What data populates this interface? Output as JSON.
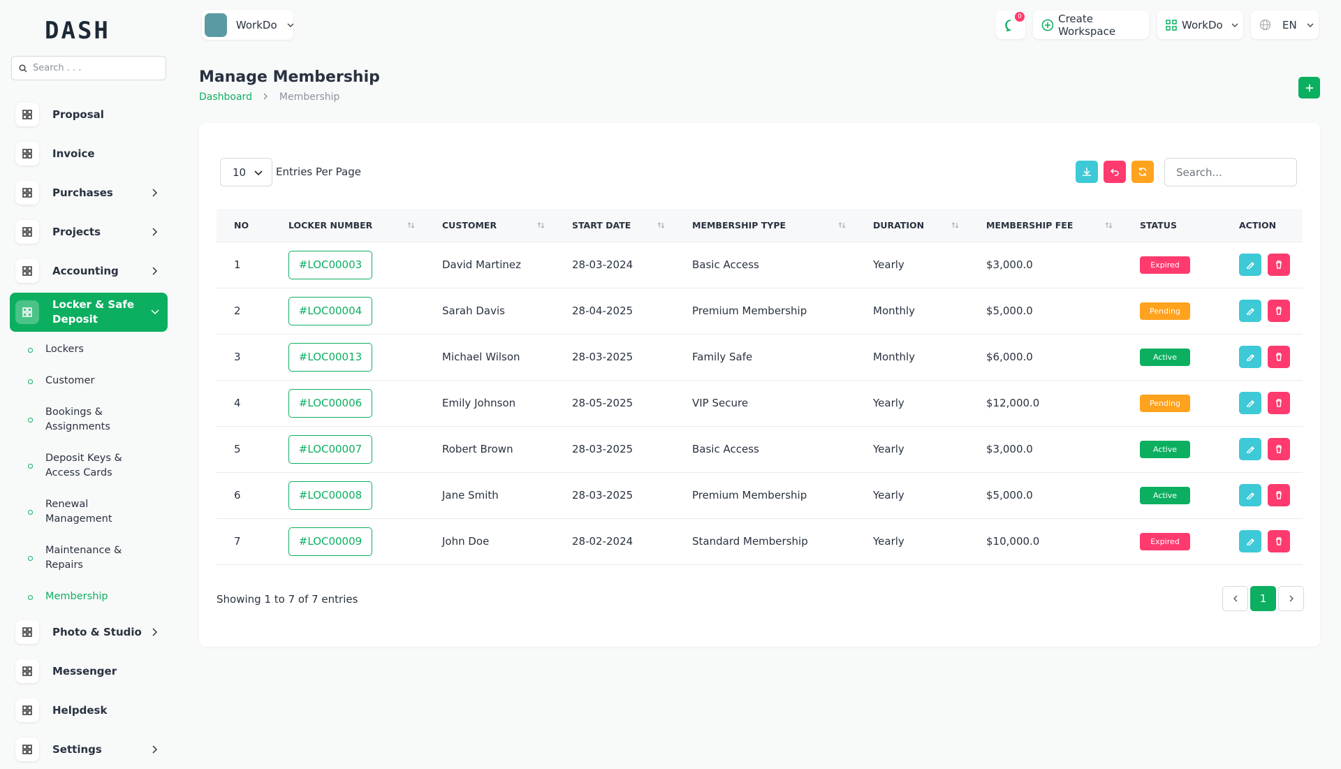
{
  "sidebar": {
    "logo": "DASH",
    "search_placeholder": "Search . . .",
    "menu": [
      {
        "label": "Proposal"
      },
      {
        "label": "Invoice"
      },
      {
        "label": "Purchases",
        "expandable": true
      },
      {
        "label": "Projects",
        "expandable": true
      },
      {
        "label": "Accounting",
        "expandable": true
      },
      {
        "label": "Locker & Safe Deposit",
        "expandable": true,
        "active": true,
        "children": [
          {
            "label": "Lockers"
          },
          {
            "label": "Customer"
          },
          {
            "label": "Bookings & Assignments"
          },
          {
            "label": "Deposit Keys & Access Cards"
          },
          {
            "label": "Renewal Management"
          },
          {
            "label": "Maintenance & Repairs"
          },
          {
            "label": "Membership",
            "active": true
          }
        ]
      },
      {
        "label": "Photo & Studio",
        "expandable": true
      },
      {
        "label": "Messenger"
      },
      {
        "label": "Helpdesk"
      },
      {
        "label": "Settings",
        "expandable": true
      }
    ]
  },
  "header": {
    "workspace": "WorkDo",
    "notification_count": 0,
    "create_workspace": "Create Workspace",
    "user": "WorkDo",
    "language": "EN"
  },
  "page": {
    "title": "Manage Membership",
    "breadcrumb": [
      "Dashboard",
      "Membership"
    ]
  },
  "table": {
    "entries_value": 10,
    "entries_label": "Entries Per Page",
    "search_placeholder": "Search...",
    "columns": [
      "NO",
      "LOCKER NUMBER",
      "CUSTOMER",
      "START DATE",
      "MEMBERSHIP TYPE",
      "DURATION",
      "MEMBERSHIP FEE",
      "STATUS",
      "ACTION"
    ],
    "rows": [
      [
        1,
        "#LOC00003",
        "David Martinez",
        "28-03-2024",
        "Basic Access",
        "Yearly",
        "$3,000.0",
        "Expired"
      ],
      [
        2,
        "#LOC00004",
        "Sarah Davis",
        "28-04-2025",
        "Premium Membership",
        "Monthly",
        "$5,000.0",
        "Pending"
      ],
      [
        3,
        "#LOC00013",
        "Michael Wilson",
        "28-03-2025",
        "Family Safe",
        "Monthly",
        "$6,000.0",
        "Active"
      ],
      [
        4,
        "#LOC00006",
        "Emily Johnson",
        "28-05-2025",
        "VIP Secure",
        "Yearly",
        "$12,000.0",
        "Pending"
      ],
      [
        5,
        "#LOC00007",
        "Robert Brown",
        "28-03-2025",
        "Basic Access",
        "Yearly",
        "$3,000.0",
        "Active"
      ],
      [
        6,
        "#LOC00008",
        "Jane Smith",
        "28-03-2025",
        "Premium Membership",
        "Yearly",
        "$5,000.0",
        "Active"
      ],
      [
        7,
        "#LOC00009",
        "John Doe",
        "28-02-2024",
        "Standard Membership",
        "Yearly",
        "$10,000.0",
        "Expired"
      ]
    ],
    "footer": "Showing 1 to 7 of 7 entries",
    "current_page": 1
  }
}
